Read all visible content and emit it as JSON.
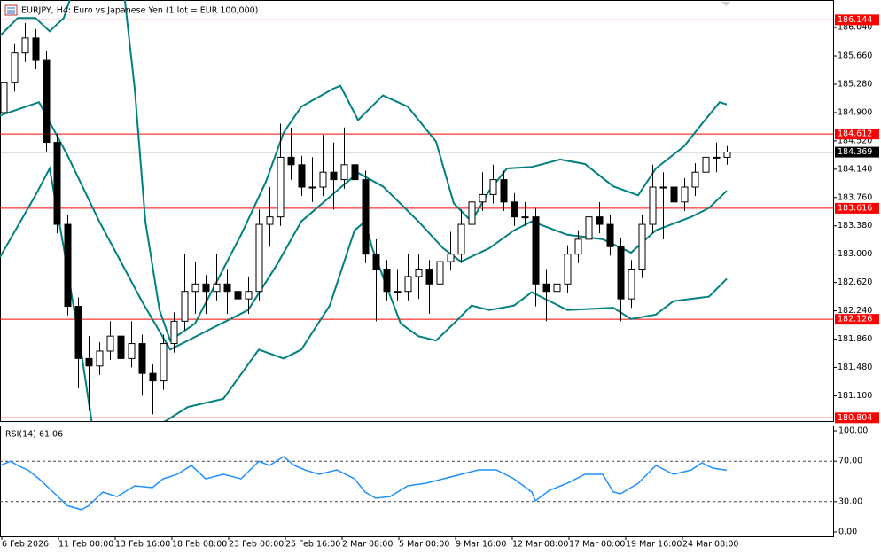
{
  "chart_data": {
    "type": "candlestick",
    "title": "EURJPY, H4:  Euro vs Japanese Yen (1 lot = EUR 100,000)",
    "xlim": [
      0,
      235
    ],
    "ylim": [
      180.76,
      186.41
    ],
    "bull_color": "#ffffff",
    "bear_color": "#000000",
    "xticks": [
      {
        "value": 0,
        "label": "6 Feb 2026"
      },
      {
        "value": 16,
        "label": "11 Feb 00:00"
      },
      {
        "value": 32,
        "label": "13 Feb 16:00"
      },
      {
        "value": 48,
        "label": "18 Feb 08:00"
      },
      {
        "value": 64,
        "label": "23 Feb 00:00"
      },
      {
        "value": 80,
        "label": "25 Feb 16:00"
      },
      {
        "value": 96,
        "label": "2 Mar 08:00"
      },
      {
        "value": 112,
        "label": "5 Mar 00:00"
      },
      {
        "value": 128,
        "label": "9 Mar 16:00"
      },
      {
        "value": 144,
        "label": "12 Mar 08:00"
      },
      {
        "value": 160,
        "label": "17 Mar 00:00"
      },
      {
        "value": 176,
        "label": "19 Mar 16:00"
      },
      {
        "value": 192,
        "label": "24 Mar 08:00"
      }
    ],
    "yticks": [
      {
        "value": 186.04,
        "label": "186.040"
      },
      {
        "value": 185.66,
        "label": "185.660"
      },
      {
        "value": 185.28,
        "label": "185.280"
      },
      {
        "value": 184.9,
        "label": "184.900"
      },
      {
        "value": 184.52,
        "label": "184.520"
      },
      {
        "value": 184.14,
        "label": "184.140"
      },
      {
        "value": 183.76,
        "label": "183.760"
      },
      {
        "value": 183.38,
        "label": "183.380"
      },
      {
        "value": 183,
        "label": "183.000"
      },
      {
        "value": 182.62,
        "label": "182.620"
      },
      {
        "value": 182.24,
        "label": "182.240"
      },
      {
        "value": 181.86,
        "label": "181.860"
      },
      {
        "value": 181.48,
        "label": "181.480"
      },
      {
        "value": 181.1,
        "label": "181.100"
      }
    ],
    "levels": [
      {
        "value": 186.144,
        "color": "#ff0000"
      },
      {
        "value": 184.612,
        "color": "#ff0000"
      },
      {
        "value": 184.369,
        "color": "#000000"
      },
      {
        "value": 183.616,
        "color": "#ff0000"
      },
      {
        "value": 182.126,
        "color": "#ff0000"
      },
      {
        "value": 180.804,
        "color": "#ff0000"
      }
    ],
    "x": [
      1,
      4,
      7,
      10,
      13,
      16,
      19,
      22,
      25,
      28,
      31,
      34,
      37,
      40,
      43,
      46,
      49,
      52,
      55,
      58,
      61,
      64,
      67,
      70,
      73,
      76,
      79,
      82,
      85,
      88,
      91,
      94,
      97,
      100,
      103,
      106,
      109,
      112,
      115,
      118,
      121,
      124,
      127,
      130,
      133,
      136,
      139,
      142,
      145,
      148,
      151,
      154,
      157,
      160,
      163,
      166,
      169,
      172,
      175,
      178,
      181,
      184,
      187,
      190,
      193,
      196,
      199,
      202,
      205
    ],
    "ohlc": [
      [
        184.9,
        185.42,
        184.78,
        185.3
      ],
      [
        185.3,
        185.82,
        185.18,
        185.7
      ],
      [
        185.7,
        186.1,
        185.58,
        185.9
      ],
      [
        185.9,
        186.02,
        185.48,
        185.6
      ],
      [
        185.6,
        185.72,
        184.38,
        184.5
      ],
      [
        184.5,
        184.62,
        183.28,
        183.4
      ],
      [
        183.4,
        183.52,
        182.18,
        182.3
      ],
      [
        182.3,
        182.42,
        181.2,
        181.6
      ],
      [
        181.6,
        181.9,
        180.9,
        181.5
      ],
      [
        181.5,
        181.82,
        181.38,
        181.7
      ],
      [
        181.7,
        182.1,
        181.58,
        181.9
      ],
      [
        181.9,
        182.02,
        181.48,
        181.6
      ],
      [
        181.6,
        182.1,
        181.48,
        181.8
      ],
      [
        181.8,
        181.92,
        181.1,
        181.4
      ],
      [
        181.4,
        181.52,
        180.85,
        181.3
      ],
      [
        181.3,
        181.92,
        181.18,
        181.8
      ],
      [
        181.8,
        182.22,
        181.68,
        182.1
      ],
      [
        182.1,
        183.0,
        181.98,
        182.5
      ],
      [
        182.5,
        182.9,
        182.2,
        182.6
      ],
      [
        182.6,
        182.72,
        182.2,
        182.5
      ],
      [
        182.5,
        183.0,
        182.38,
        182.6
      ],
      [
        182.6,
        182.8,
        182.2,
        182.5
      ],
      [
        182.5,
        182.62,
        182.1,
        182.4
      ],
      [
        182.4,
        182.7,
        182.2,
        182.5
      ],
      [
        182.5,
        183.6,
        182.38,
        183.4
      ],
      [
        183.4,
        183.9,
        183.1,
        183.5
      ],
      [
        183.5,
        184.75,
        183.38,
        184.3
      ],
      [
        184.3,
        184.7,
        184.0,
        184.2
      ],
      [
        184.2,
        184.32,
        183.78,
        183.9
      ],
      [
        183.9,
        184.3,
        183.7,
        183.9
      ],
      [
        183.9,
        184.6,
        183.78,
        184.1
      ],
      [
        184.1,
        184.5,
        183.6,
        184.0
      ],
      [
        184.0,
        184.7,
        183.88,
        184.2
      ],
      [
        184.2,
        184.32,
        183.5,
        184.0
      ],
      [
        184.0,
        184.12,
        182.88,
        183.0
      ],
      [
        183.0,
        183.2,
        182.1,
        182.8
      ],
      [
        182.8,
        182.92,
        182.38,
        182.5
      ],
      [
        182.5,
        182.8,
        182.38,
        182.5
      ],
      [
        182.5,
        183.0,
        182.38,
        182.7
      ],
      [
        182.7,
        183.0,
        182.4,
        182.8
      ],
      [
        182.8,
        182.92,
        182.2,
        182.6
      ],
      [
        182.6,
        183.1,
        182.48,
        182.9
      ],
      [
        182.9,
        183.3,
        182.78,
        183.0
      ],
      [
        183.0,
        183.6,
        182.88,
        183.4
      ],
      [
        183.4,
        183.9,
        183.28,
        183.7
      ],
      [
        183.7,
        184.1,
        183.58,
        183.8
      ],
      [
        183.8,
        184.2,
        183.68,
        184.0
      ],
      [
        184.0,
        184.12,
        183.58,
        183.7
      ],
      [
        183.7,
        183.82,
        183.38,
        183.5
      ],
      [
        183.5,
        183.7,
        183.38,
        183.5
      ],
      [
        183.5,
        183.62,
        182.3,
        182.6
      ],
      [
        182.6,
        182.8,
        182.1,
        182.5
      ],
      [
        182.5,
        182.8,
        181.9,
        182.6
      ],
      [
        182.6,
        183.12,
        182.48,
        183.0
      ],
      [
        183.0,
        183.32,
        182.88,
        183.2
      ],
      [
        183.2,
        183.62,
        183.08,
        183.5
      ],
      [
        183.5,
        183.7,
        183.28,
        183.4
      ],
      [
        183.4,
        183.52,
        182.98,
        183.1
      ],
      [
        183.1,
        183.22,
        182.1,
        182.4
      ],
      [
        182.4,
        182.92,
        182.28,
        182.8
      ],
      [
        182.8,
        183.52,
        182.68,
        183.4
      ],
      [
        183.4,
        184.2,
        183.28,
        183.9
      ],
      [
        183.9,
        184.1,
        183.2,
        183.9
      ],
      [
        183.9,
        184.02,
        183.58,
        183.7
      ],
      [
        183.7,
        184.02,
        183.58,
        183.9
      ],
      [
        183.9,
        184.22,
        183.78,
        184.1
      ],
      [
        184.1,
        184.55,
        183.98,
        184.3
      ],
      [
        184.3,
        184.5,
        184.1,
        184.3
      ],
      [
        184.3,
        184.45,
        184.2,
        184.37
      ]
    ],
    "bands": [
      {
        "color": "#008080",
        "x": [
          0,
          5,
          10,
          14,
          18,
          21,
          28,
          35,
          38,
          41,
          45,
          48,
          55,
          68,
          75,
          80,
          85,
          94,
          96,
          101,
          108,
          115,
          123,
          128,
          133,
          138,
          143,
          150,
          158,
          165,
          173,
          180,
          185,
          193,
          198,
          203,
          205
        ],
        "values": [
          185.93,
          186.17,
          186.17,
          185.99,
          186.17,
          186.6,
          187.0,
          186.5,
          185.22,
          183.44,
          182.25,
          181.84,
          182.07,
          183.26,
          183.97,
          184.63,
          184.98,
          185.22,
          185.26,
          184.8,
          185.13,
          184.98,
          184.51,
          183.68,
          183.44,
          183.85,
          184.15,
          184.17,
          184.27,
          184.21,
          183.91,
          183.79,
          184.15,
          184.45,
          184.75,
          185.04,
          185.01
        ]
      },
      {
        "color": "#008080",
        "x": [
          0,
          11,
          19,
          28,
          40,
          48,
          60,
          70,
          78,
          85,
          95,
          101,
          108,
          118,
          125,
          130,
          138,
          145,
          150,
          160,
          170,
          178,
          185,
          195,
          200,
          205
        ],
        "values": [
          184.86,
          185.04,
          184.33,
          183.44,
          182.37,
          181.72,
          182.01,
          182.25,
          182.85,
          183.44,
          183.85,
          184.09,
          183.91,
          183.44,
          183.08,
          182.9,
          183.08,
          183.32,
          183.44,
          183.26,
          183.2,
          183.02,
          183.32,
          183.5,
          183.62,
          183.85
        ]
      },
      {
        "color": "#008080",
        "x": [
          0,
          10,
          14,
          18,
          23,
          26,
          35,
          45,
          53,
          63,
          73,
          80,
          85,
          93,
          100,
          103,
          105,
          113,
          118,
          123,
          128,
          133,
          138,
          145,
          150,
          155,
          160,
          173,
          178,
          185,
          190,
          200,
          205
        ],
        "values": [
          182.96,
          183.79,
          184.15,
          183.08,
          181.66,
          180.71,
          179.76,
          180.71,
          180.95,
          181.06,
          181.72,
          181.6,
          181.72,
          182.31,
          183.32,
          183.44,
          183.08,
          182.07,
          181.9,
          181.84,
          182.07,
          182.31,
          182.25,
          182.31,
          182.49,
          182.37,
          182.25,
          182.28,
          182.13,
          182.19,
          182.37,
          182.43,
          182.67
        ]
      }
    ],
    "rsi": {
      "label": "RSI(14) 61.06",
      "color": "#1e90ff",
      "ylim": [
        -4.4,
        105.3
      ],
      "yticks": [
        {
          "value": 100,
          "label": "100.00"
        },
        {
          "value": 70,
          "label": "70.00"
        },
        {
          "value": 30,
          "label": "30.00"
        },
        {
          "value": 0,
          "label": "0.00"
        }
      ],
      "levels": [
        70,
        30
      ],
      "x": [
        0,
        3,
        5,
        8,
        11,
        15,
        19,
        23,
        25,
        29,
        33,
        38,
        43,
        46,
        50,
        54,
        58,
        63,
        68,
        73,
        76,
        80,
        83,
        86,
        90,
        95,
        100,
        103,
        106,
        110,
        115,
        120,
        125,
        130,
        135,
        140,
        145,
        150,
        151,
        155,
        160,
        165,
        170,
        173,
        175,
        180,
        185,
        190,
        195,
        198,
        201,
        205
      ],
      "values": [
        65.8,
        70,
        65.8,
        61,
        52.6,
        39.5,
        26,
        22,
        26,
        39.5,
        35,
        45.6,
        43.9,
        52.6,
        57,
        65.8,
        52.6,
        57,
        52.6,
        70,
        65.8,
        74.6,
        65.8,
        61.4,
        57,
        61.4,
        52.6,
        39.5,
        33.3,
        35,
        45.6,
        48.2,
        52.6,
        57,
        61.4,
        61.4,
        52.6,
        39.5,
        30.7,
        41.2,
        48.2,
        57,
        57,
        39.5,
        37.7,
        48.2,
        65.8,
        57,
        61.4,
        68.4,
        63.2,
        61.06
      ]
    }
  }
}
